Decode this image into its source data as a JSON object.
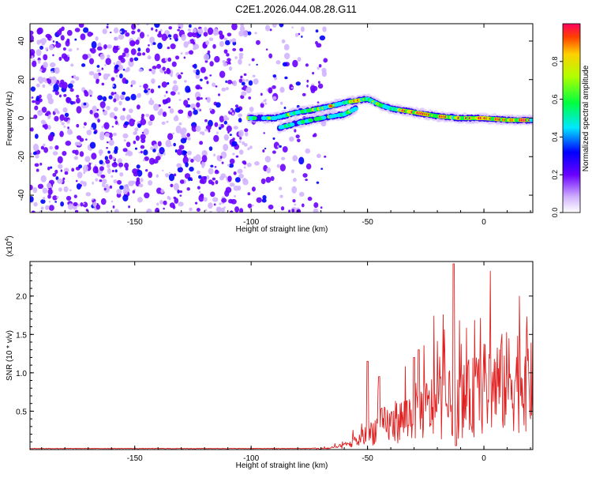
{
  "title": "C2E1.2026.044.08.28.G11",
  "chart_data": [
    {
      "type": "heatmap",
      "xlabel": "Height of straight line (km)",
      "ylabel": "Frequency (Hz)",
      "xlim": [
        -195,
        21
      ],
      "ylim": [
        -49,
        49
      ],
      "xticks": [
        -150,
        -100,
        -50,
        0
      ],
      "yticks": [
        -40,
        -20,
        0,
        20,
        40
      ],
      "colorbar": {
        "label": "Normalized spectral amplitude",
        "range": [
          0,
          1
        ],
        "ticks": [
          "0.0",
          "0.2",
          "0.4",
          "0.6",
          "0.8"
        ],
        "tick_values": [
          0.0,
          0.2,
          0.4,
          0.6,
          0.8
        ]
      },
      "features": {
        "noise_region_km": [
          -195,
          -72
        ],
        "primary_trace": [
          [
            -100,
            0
          ],
          [
            -90,
            0
          ],
          [
            -80,
            3
          ],
          [
            -70,
            5
          ],
          [
            -60,
            8
          ],
          [
            -50,
            10
          ],
          [
            -45,
            7
          ],
          [
            -40,
            5
          ],
          [
            -30,
            3
          ],
          [
            -20,
            1
          ],
          [
            -10,
            0
          ],
          [
            0,
            0
          ],
          [
            10,
            -1
          ],
          [
            21,
            -1
          ]
        ],
        "secondary_trace": [
          [
            -88,
            -5
          ],
          [
            -78,
            -2
          ],
          [
            -70,
            0
          ],
          [
            -60,
            2
          ],
          [
            -55,
            5
          ]
        ]
      }
    },
    {
      "type": "line",
      "xlabel": "Height of straight line (km)",
      "ylabel": "SNR (10 * v/v)",
      "exponent_label": "(x10",
      "exponent_value": "4",
      "exponent_close": ")",
      "xlim": [
        -195,
        21
      ],
      "ylim": [
        0,
        2.45
      ],
      "xticks": [
        -150,
        -100,
        -50,
        0
      ],
      "yticks": [
        "0.5",
        "1.0",
        "1.5",
        "2.0"
      ],
      "ytick_values": [
        0.5,
        1.0,
        1.5,
        2.0
      ],
      "series": [
        {
          "name": "SNR",
          "color": "#e02020",
          "envelope": [
            [
              -195,
              0.01
            ],
            [
              -75,
              0.01
            ],
            [
              -65,
              0.03
            ],
            [
              -60,
              0.08
            ],
            [
              -55,
              0.15
            ],
            [
              -50,
              0.3
            ],
            [
              -47,
              0.4
            ],
            [
              -43,
              0.5
            ],
            [
              -40,
              0.5
            ],
            [
              -35,
              0.6
            ],
            [
              -30,
              0.75
            ],
            [
              -25,
              0.8
            ],
            [
              -20,
              0.9
            ],
            [
              -15,
              0.9
            ],
            [
              -10,
              0.95
            ],
            [
              -5,
              1.05
            ],
            [
              0,
              1.2
            ],
            [
              5,
              1.3
            ],
            [
              10,
              1.35
            ],
            [
              15,
              1.45
            ],
            [
              21,
              1.55
            ]
          ],
          "peaks": [
            [
              -50,
              1.15
            ],
            [
              -45,
              0.95
            ],
            [
              -30,
              1.2
            ],
            [
              -28,
              1.3
            ],
            [
              -13,
              2.42
            ],
            [
              -12,
              0.05
            ]
          ]
        }
      ]
    }
  ]
}
